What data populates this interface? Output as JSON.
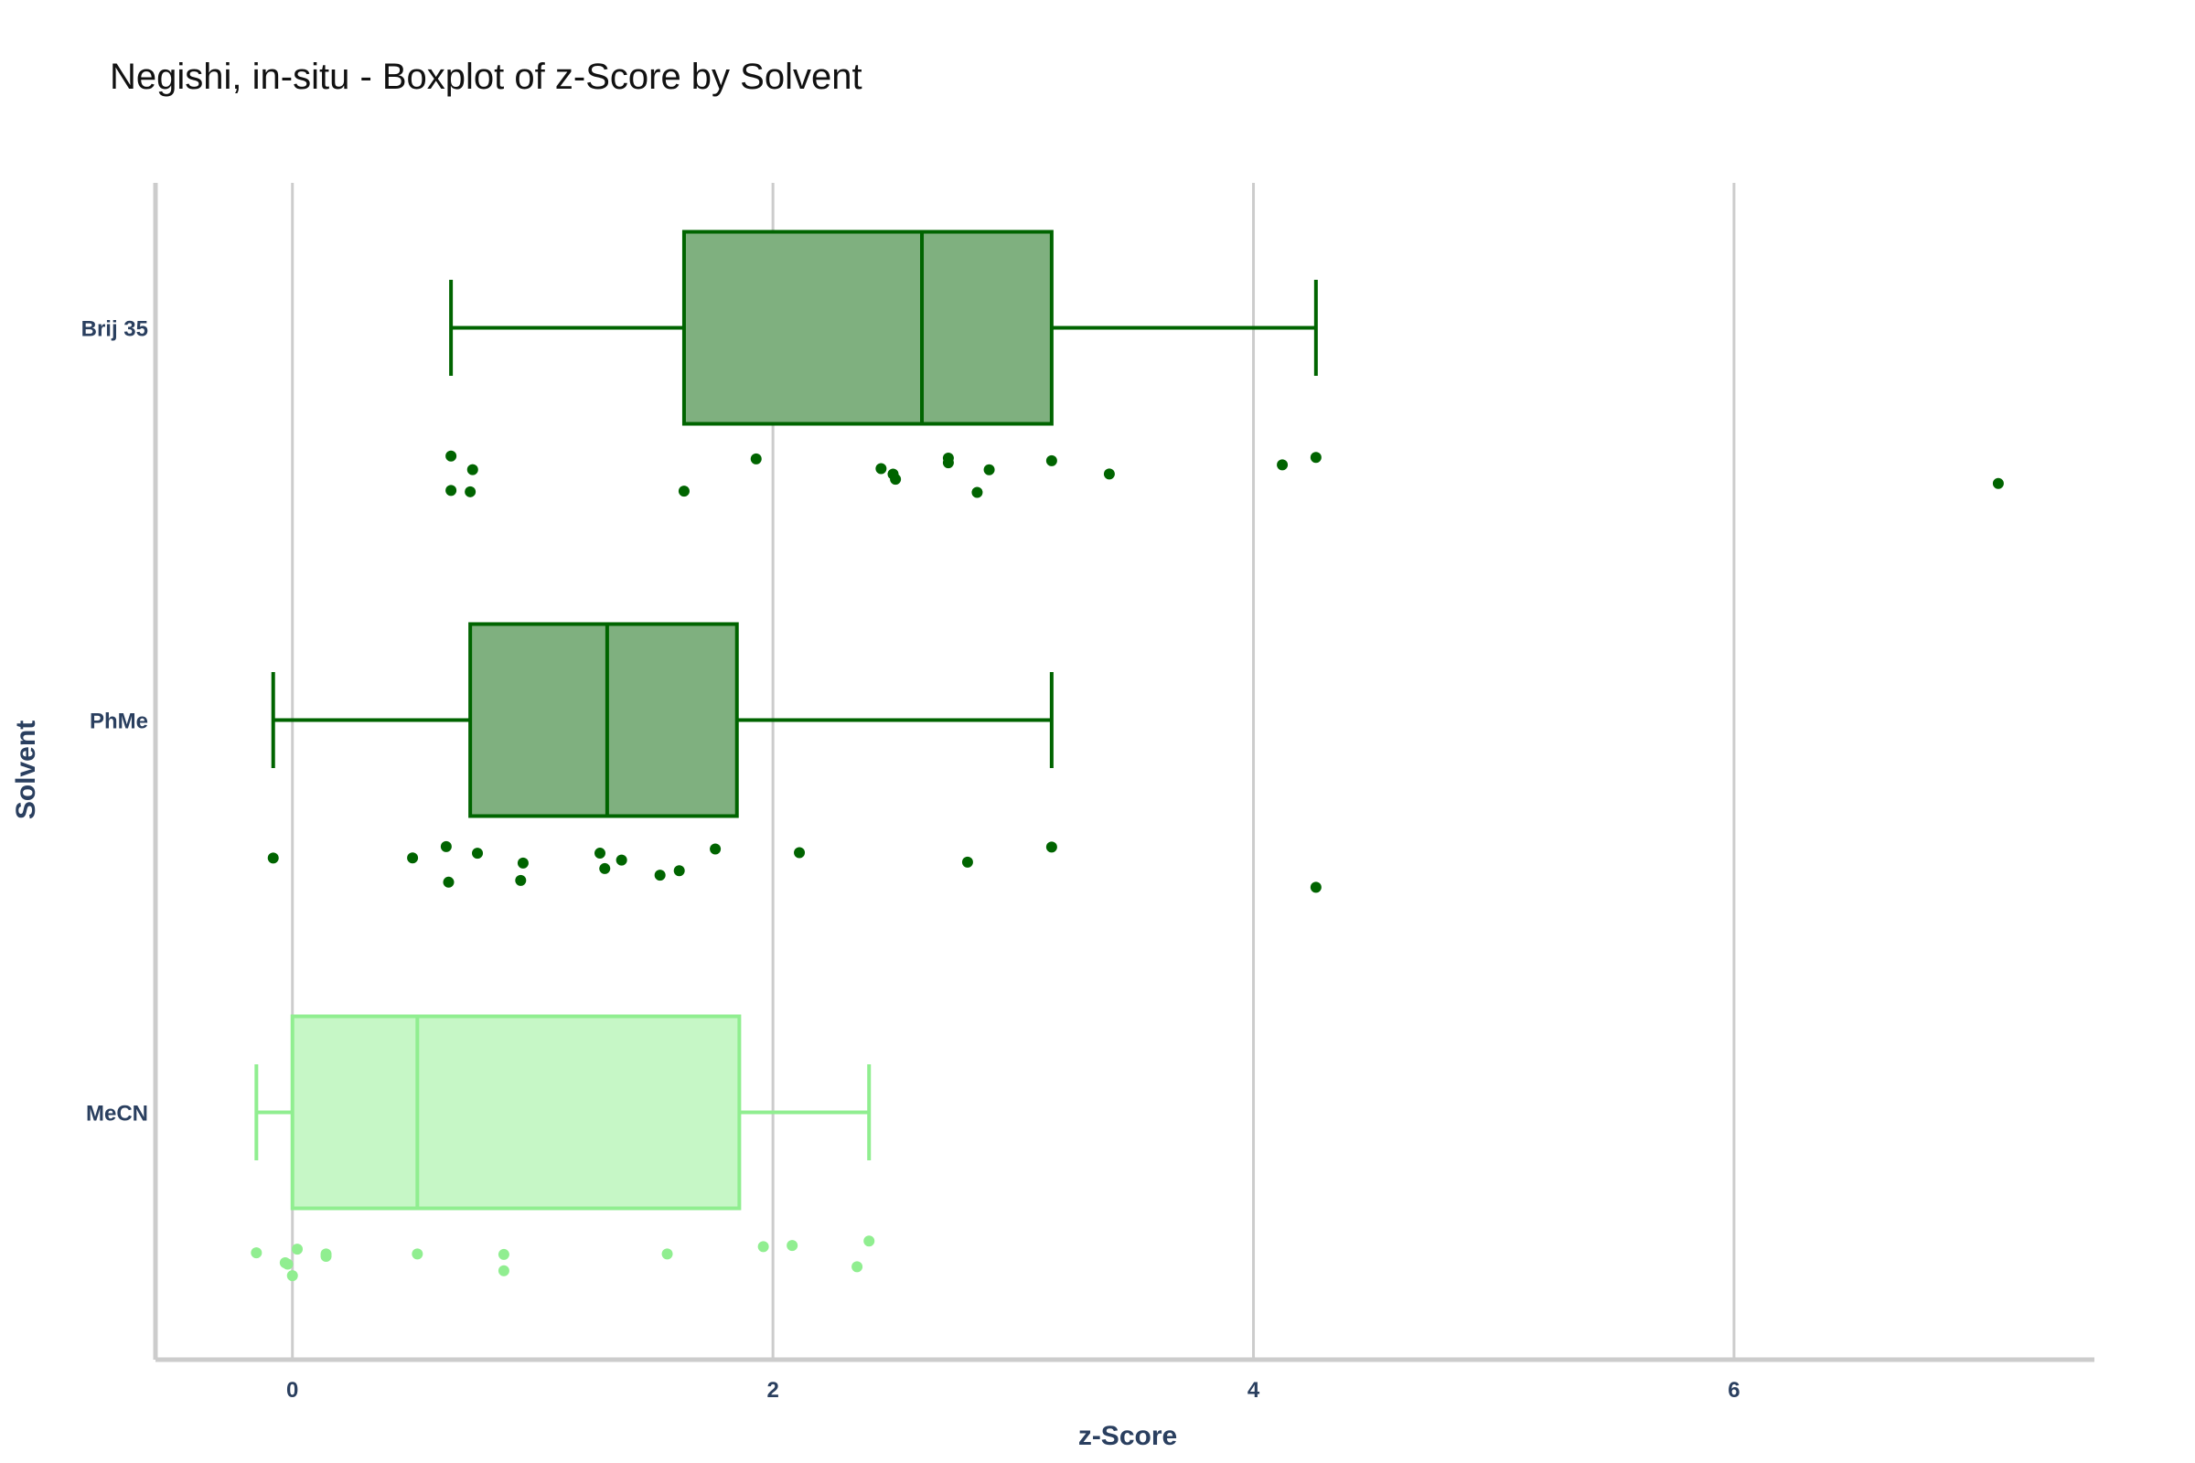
{
  "chart_data": {
    "type": "box",
    "title": "Negishi, in-situ - Boxplot of z-Score by Solvent",
    "xlabel": "z-Score",
    "ylabel": "Solvent",
    "xlim": [
      -0.57,
      7.5
    ],
    "x_ticks": [
      0,
      2,
      4,
      6
    ],
    "x_tick_labels": [
      "0",
      "2",
      "4",
      "6"
    ],
    "grid": "vertical",
    "categories": [
      "Brij 35",
      "PhMe",
      "MeCN"
    ],
    "series": [
      {
        "category": "Brij 35",
        "color": "#006400",
        "fill": "#7fb07f",
        "whisker_low": 0.66,
        "q1": 1.63,
        "median": 2.62,
        "q3": 3.16,
        "whisker_high": 4.26,
        "points": [
          0.66,
          0.74,
          0.66,
          0.75,
          1.63,
          1.93,
          2.45,
          2.5,
          2.51,
          2.73,
          2.73,
          2.85,
          2.9,
          3.16,
          3.4,
          4.12,
          4.26,
          7.1
        ]
      },
      {
        "category": "PhMe",
        "color": "#006400",
        "fill": "#7fb07f",
        "whisker_low": -0.08,
        "q1": 0.74,
        "median": 1.31,
        "q3": 1.85,
        "whisker_high": 3.16,
        "points": [
          -0.08,
          0.5,
          0.64,
          0.65,
          0.77,
          0.95,
          0.96,
          1.28,
          1.3,
          1.37,
          1.53,
          1.61,
          1.76,
          2.11,
          2.81,
          3.16,
          4.26
        ]
      },
      {
        "category": "MeCN",
        "color": "#90ee90",
        "fill": "#c6f7c6",
        "whisker_low": -0.15,
        "q1": 0.0,
        "median": 0.52,
        "q3": 1.86,
        "whisker_high": 2.4,
        "points": [
          -0.15,
          -0.02,
          -0.03,
          0.0,
          0.02,
          0.14,
          0.14,
          0.52,
          0.88,
          0.88,
          1.56,
          1.96,
          2.08,
          2.35,
          2.4
        ]
      }
    ]
  }
}
